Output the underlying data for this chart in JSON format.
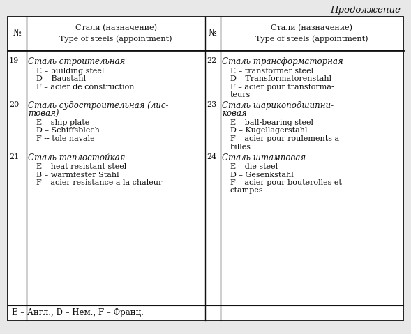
{
  "title": "Продолжение",
  "header_col1_num": "№",
  "header_col1_text": "Стали (назначение)\nType of steels (appointment)",
  "header_col2_num": "№",
  "header_col2_text": "Стали (назначение)\nType of steels (appointment)",
  "footer": "E – Англ., D – Нем., F – Франц.",
  "left_entries": [
    {
      "num": "19",
      "title": "Сталь строительная",
      "lines": [
        "E – building steel",
        "D – Baustahl",
        "F – acier de construction"
      ]
    },
    {
      "num": "20",
      "title": "Сталь судостроительная (лис-\nтовая)",
      "lines": [
        "E – ship plate",
        "D – Schiffsblech",
        "F -- tole navale"
      ]
    },
    {
      "num": "21",
      "title": "Сталь теплостойкая",
      "lines": [
        "E – heat resistant steel",
        "B – warmfester Stahl",
        "F – acier resistance a la chaleur"
      ]
    }
  ],
  "right_entries": [
    {
      "num": "22",
      "title": "Сталь трансформаторная",
      "lines": [
        "E – transformer steel",
        "D – Transformatorenstahl",
        "F – acier pour transforma-\nteurs"
      ]
    },
    {
      "num": "23",
      "title": "Сталь шарикоподшипни-\nковая",
      "lines": [
        "E – ball-bearing steel",
        "D – Kugellagerstahl",
        "F – acier pour roulements a\nbilles"
      ]
    },
    {
      "num": "24",
      "title": "Сталь штамповая",
      "lines": [
        "E – die steel",
        "D – Gesenkstahl",
        "F – acier pour bouterolles et\netampes"
      ]
    }
  ],
  "bg_color": "#e8e8e8",
  "table_bg": "#ffffff",
  "border_color": "#111111",
  "text_color": "#111111",
  "fig_w": 5.89,
  "fig_h": 4.79,
  "dpi": 100
}
